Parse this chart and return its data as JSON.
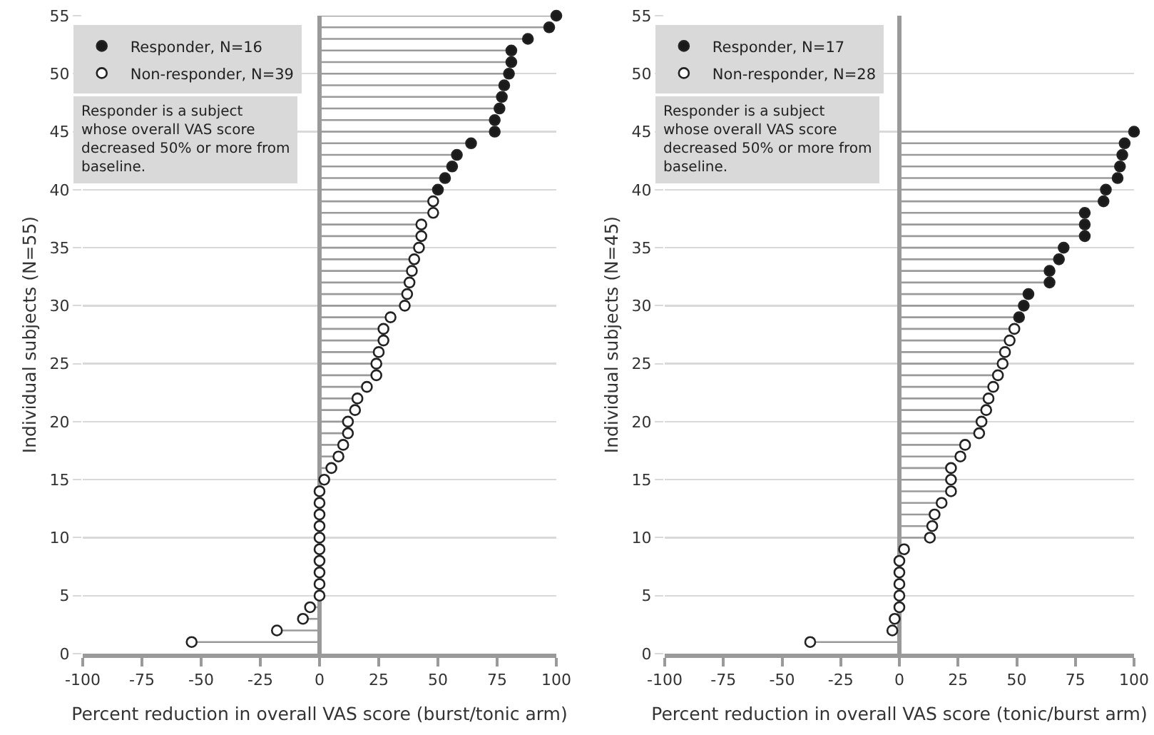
{
  "chart_data": [
    {
      "type": "lollipop",
      "orientation": "horizontal",
      "xlabel": "Percent reduction in overall VAS score (burst/tonic arm)",
      "ylabel": "Individual subjects (N=55)",
      "xlim": [
        -100,
        100
      ],
      "xticks": [
        -100,
        -75,
        -50,
        -25,
        0,
        25,
        50,
        75,
        100
      ],
      "ylim": [
        0,
        55
      ],
      "yticks": [
        0,
        5,
        10,
        15,
        20,
        25,
        30,
        35,
        40,
        45,
        50,
        55
      ],
      "grid": "y",
      "legend": "top left",
      "marker": "circle",
      "annotations": [
        "Responder is a subject whose overall VAS score decreased 50% or more from baseline."
      ],
      "series": [
        {
          "name": "Responder, N=16",
          "color": "#1a1a1a",
          "x": [
            40,
            41,
            42,
            43,
            44,
            45,
            46,
            47,
            48,
            49,
            50,
            51,
            52,
            53,
            54,
            55
          ],
          "values": [
            50,
            53,
            56,
            58,
            64,
            74,
            74,
            76,
            77,
            78,
            80,
            81,
            81,
            88,
            97,
            100
          ]
        },
        {
          "name": "Non-responder, N=39",
          "color": "#ffffff",
          "x": [
            1,
            2,
            3,
            4,
            5,
            6,
            7,
            8,
            9,
            10,
            11,
            12,
            13,
            14,
            15,
            16,
            17,
            18,
            19,
            20,
            21,
            22,
            23,
            24,
            25,
            26,
            27,
            28,
            29,
            30,
            31,
            32,
            33,
            34,
            35,
            36,
            37,
            38,
            39
          ],
          "values": [
            -54,
            -18,
            -7,
            -4,
            0,
            0,
            0,
            0,
            0,
            0,
            0,
            0,
            0,
            0,
            2,
            5,
            8,
            10,
            12,
            12,
            15,
            16,
            20,
            24,
            24,
            25,
            27,
            27,
            30,
            36,
            37,
            38,
            39,
            40,
            42,
            43,
            43,
            48,
            48
          ]
        }
      ]
    },
    {
      "type": "lollipop",
      "orientation": "horizontal",
      "xlabel": "Percent reduction in overall VAS score (tonic/burst arm)",
      "ylabel": "Individual subjects (N=45)",
      "xlim": [
        -100,
        100
      ],
      "xticks": [
        -100,
        -75,
        -50,
        -25,
        0,
        25,
        50,
        75,
        100
      ],
      "ylim": [
        0,
        55
      ],
      "yticks": [
        0,
        5,
        10,
        15,
        20,
        25,
        30,
        35,
        40,
        45,
        50,
        55
      ],
      "grid": "y",
      "legend": "top left",
      "marker": "circle",
      "annotations": [
        "Responder is a subject whose overall VAS score decreased 50% or more from baseline."
      ],
      "series": [
        {
          "name": "Responder, N=17",
          "color": "#1a1a1a",
          "x": [
            29,
            30,
            31,
            32,
            33,
            34,
            35,
            36,
            37,
            38,
            39,
            40,
            41,
            42,
            43,
            44,
            45
          ],
          "values": [
            51,
            53,
            55,
            64,
            64,
            68,
            70,
            79,
            79,
            79,
            87,
            88,
            93,
            94,
            95,
            96,
            100
          ]
        },
        {
          "name": "Non-responder, N=28",
          "color": "#ffffff",
          "x": [
            1,
            2,
            3,
            4,
            5,
            6,
            7,
            8,
            9,
            10,
            11,
            12,
            13,
            14,
            15,
            16,
            17,
            18,
            19,
            20,
            21,
            22,
            23,
            24,
            25,
            26,
            27,
            28
          ],
          "values": [
            -38,
            -3,
            -2,
            0,
            0,
            0,
            0,
            0,
            2,
            13,
            14,
            15,
            18,
            22,
            22,
            22,
            26,
            28,
            34,
            35,
            37,
            38,
            40,
            42,
            44,
            45,
            47,
            49
          ]
        }
      ]
    }
  ]
}
